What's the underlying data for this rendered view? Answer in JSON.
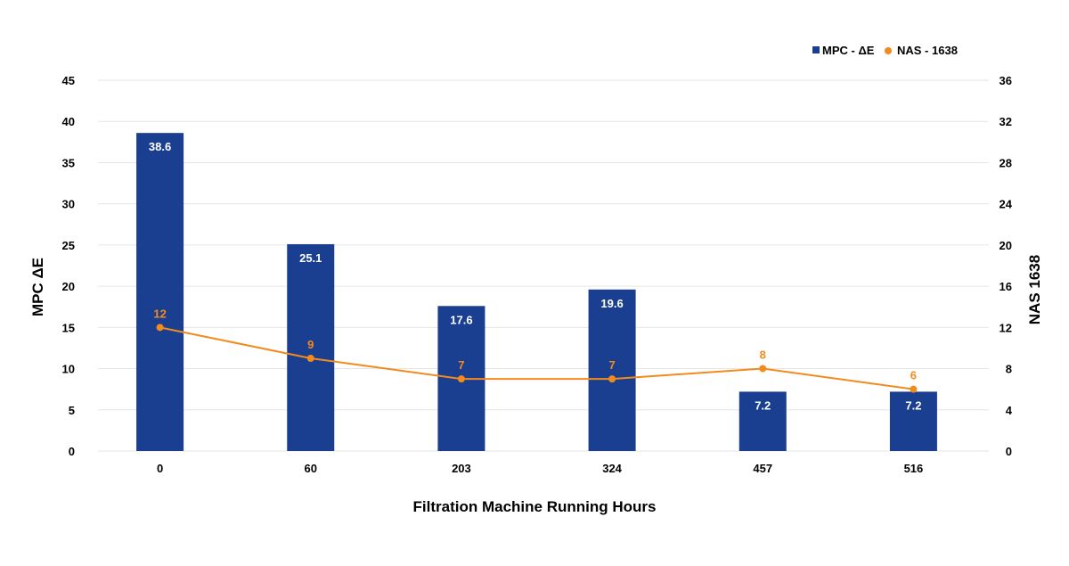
{
  "chart_data": {
    "type": "bar",
    "categories": [
      "0",
      "60",
      "203",
      "324",
      "457",
      "516"
    ],
    "series": [
      {
        "name": "MPC - ΔE",
        "type": "bar",
        "axis": "left",
        "color": "#1a3f91",
        "values": [
          38.6,
          25.1,
          17.6,
          19.6,
          7.2,
          7.2
        ],
        "labels": [
          "38.6",
          "25.1",
          "17.6",
          "19.6",
          "7.2",
          "7.2"
        ]
      },
      {
        "name": "NAS - 1638",
        "type": "line",
        "axis": "right",
        "color": "#f28a1c",
        "values": [
          12,
          9,
          7,
          7,
          8,
          6
        ],
        "labels": [
          "12",
          "9",
          "7",
          "7",
          "8",
          "6"
        ]
      }
    ],
    "xlabel": "Filtration Machine Running Hours",
    "ylabel": "MPC ΔE",
    "y2label": "NAS 1638",
    "ylim": [
      0,
      45
    ],
    "y2lim": [
      0,
      36
    ],
    "yticks": [
      "0",
      "5",
      "10",
      "15",
      "20",
      "25",
      "30",
      "35",
      "40",
      "45"
    ],
    "y2ticks": [
      "0",
      "4",
      "8",
      "12",
      "16",
      "20",
      "24",
      "28",
      "32",
      "36"
    ],
    "grid": true,
    "legend_position": "top-right"
  }
}
